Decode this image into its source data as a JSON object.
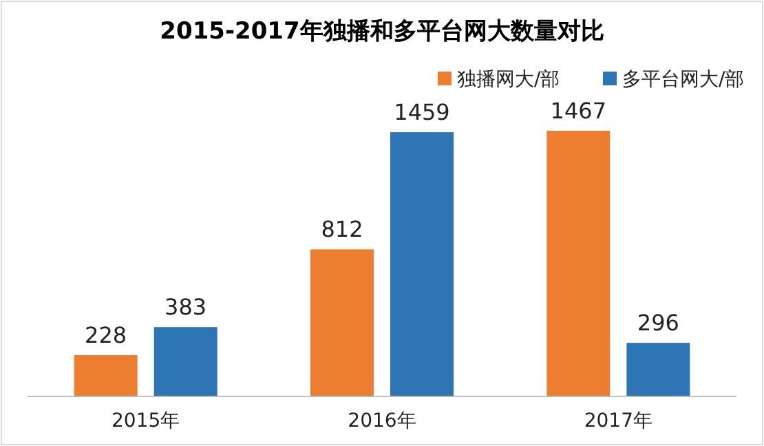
{
  "chart_data": {
    "type": "bar",
    "title": "2015-2017年独播和多平台网大数量对比",
    "categories": [
      "2015年",
      "2016年",
      "2017年"
    ],
    "series": [
      {
        "name": "独播网大/部",
        "color": "#ed7d31",
        "values": [
          228,
          812,
          1467
        ]
      },
      {
        "name": "多平台网大/部",
        "color": "#2e75b6",
        "values": [
          383,
          1459,
          296
        ]
      }
    ],
    "data_labels": true,
    "legend": "top right"
  }
}
